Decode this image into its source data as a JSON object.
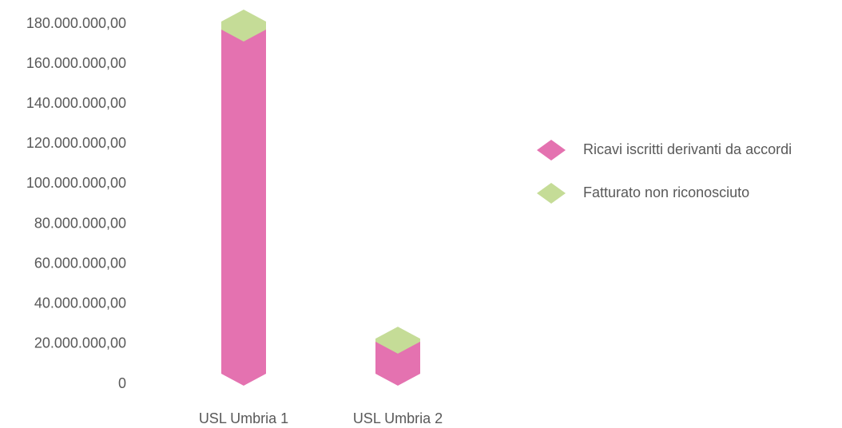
{
  "chart_data": {
    "type": "bar",
    "categories": [
      "USL Umbria 1",
      "USL Umbria 2"
    ],
    "series": [
      {
        "name": "Ricavi iscritti derivanti da accordi",
        "color": "#e472b0",
        "values": [
          172000000,
          16000000
        ]
      },
      {
        "name": "Fatturato non riconosciuto",
        "color": "#c5dc97",
        "values": [
          4000000,
          1500000
        ]
      }
    ],
    "stacked": true,
    "ylim": [
      0,
      180000000
    ],
    "yticks": [
      0,
      {
        "value": 20000000,
        "label": "20.000.000,00"
      },
      {
        "value": 40000000,
        "label": "40.000.000,00"
      },
      {
        "value": 60000000,
        "label": "60.000.000,00"
      },
      {
        "value": 80000000,
        "label": "80.000.000,00"
      },
      {
        "value": 100000000,
        "label": "100.000.000,00"
      },
      {
        "value": 120000000,
        "label": "120.000.000,00"
      },
      {
        "value": 140000000,
        "label": "140.000.000,00"
      },
      {
        "value": 160000000,
        "label": "160.000.000,00"
      },
      {
        "value": 180000000,
        "label": "180.000.000,00"
      }
    ],
    "grid": false,
    "legend": "right"
  }
}
